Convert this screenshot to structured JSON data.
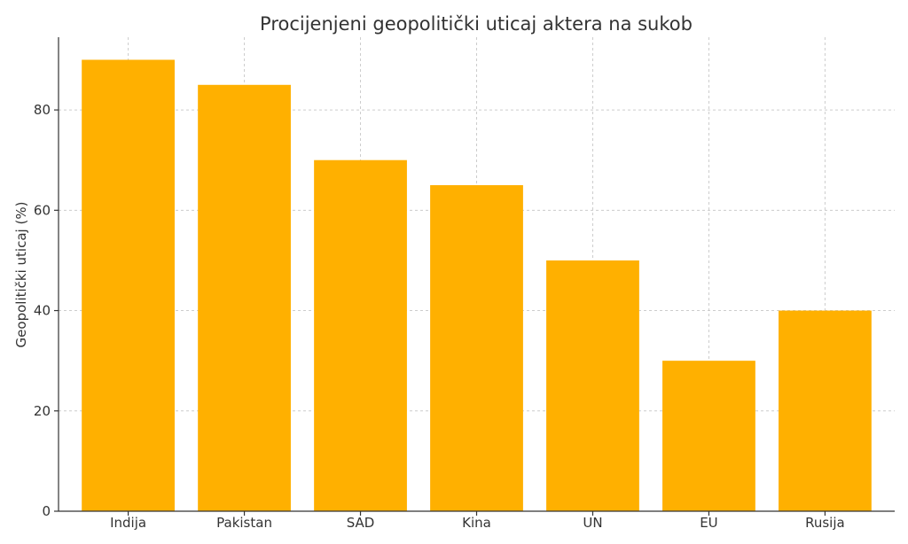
{
  "chart_data": {
    "type": "bar",
    "title": "Procijenjeni geopolitički uticaj aktera na sukob",
    "xlabel": "",
    "ylabel": "Geopolitički uticaj (%)",
    "categories": [
      "Indija",
      "Pakistan",
      "SAD",
      "Kina",
      "UN",
      "EU",
      "Rusija"
    ],
    "values": [
      90,
      85,
      70,
      65,
      50,
      30,
      40
    ],
    "ylim": [
      0,
      94.5
    ],
    "yticks": [
      0,
      20,
      40,
      60,
      80
    ],
    "grid": true,
    "bar_color": "#FFB000"
  }
}
